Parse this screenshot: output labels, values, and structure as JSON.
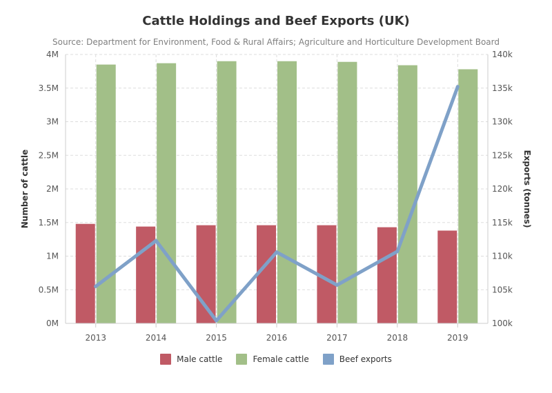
{
  "chart_data": {
    "type": "bar",
    "title": "Cattle Holdings and Beef Exports (UK)",
    "subtitle": "Source: Department for Environment, Food & Rural Affairs; Agriculture and Horticulture Development Board",
    "categories": [
      "2013",
      "2014",
      "2015",
      "2016",
      "2017",
      "2018",
      "2019"
    ],
    "series": [
      {
        "name": "Male cattle",
        "type": "bar",
        "axis": "left",
        "color": "#c05a65",
        "values": [
          1480000,
          1440000,
          1460000,
          1460000,
          1460000,
          1430000,
          1380000
        ]
      },
      {
        "name": "Female cattle",
        "type": "bar",
        "axis": "left",
        "color": "#a2bf88",
        "values": [
          3850000,
          3870000,
          3900000,
          3900000,
          3890000,
          3840000,
          3780000
        ]
      },
      {
        "name": "Beef exports",
        "type": "line",
        "axis": "right",
        "color": "#7fa1c8",
        "values": [
          105500,
          112300,
          100400,
          110600,
          105700,
          110700,
          135200
        ]
      }
    ],
    "y_left": {
      "label": "Number of cattle",
      "lim": [
        0,
        4000000
      ],
      "ticks": [
        "0M",
        "0.5M",
        "1M",
        "1.5M",
        "2M",
        "2.5M",
        "3M",
        "3.5M",
        "4M"
      ]
    },
    "y_right": {
      "label": "Exports (tonnes)",
      "lim": [
        100000,
        140000
      ],
      "ticks": [
        "100k",
        "105k",
        "110k",
        "115k",
        "120k",
        "125k",
        "130k",
        "135k",
        "140k"
      ]
    },
    "grid": true,
    "legend_position": "bottom-center"
  }
}
